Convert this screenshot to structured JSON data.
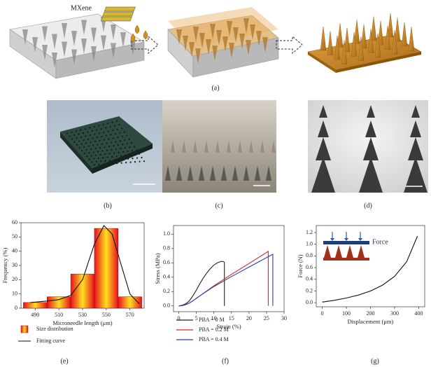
{
  "schematic": {
    "material_label": "MXene"
  },
  "panel_labels": [
    "(a)",
    "(b)",
    "(c)",
    "(d)",
    "(e)",
    "(f)",
    "(g)"
  ],
  "chart_data": [
    {
      "type": "bar",
      "x_label": "Microneedle length (μm)",
      "y_label": "Frequency (%)",
      "categories": [
        490,
        510,
        530,
        550,
        570
      ],
      "xlim": [
        478,
        582
      ],
      "ylim": [
        0,
        60
      ],
      "yticks": [
        0,
        10,
        20,
        30,
        40,
        50,
        60
      ],
      "series": [
        {
          "name": "Size distribution",
          "color": [
            "#e8101c",
            "#ffe020"
          ],
          "values": [
            4,
            8,
            24,
            56,
            8
          ]
        },
        {
          "name": "Fitting curve",
          "type": "line",
          "color": "#111111",
          "x": [
            486,
            500,
            510,
            520,
            530,
            540,
            548,
            555,
            562,
            570,
            578
          ],
          "values": [
            4,
            5,
            6,
            9,
            20,
            45,
            58,
            52,
            32,
            10,
            3
          ]
        }
      ]
    },
    {
      "type": "line",
      "x_label": "Strain (%)",
      "y_label": "Stress (MPa)",
      "xlim": [
        -1.5,
        30
      ],
      "xticks": [
        0,
        5,
        10,
        15,
        20,
        25,
        30
      ],
      "ylim": [
        -0.08,
        1.12
      ],
      "yticks": [
        {
          "value": 0,
          "label": "0.0"
        },
        0.2,
        0.4,
        0.6,
        0.8,
        {
          "value": 1,
          "label": "1.0"
        }
      ],
      "series": [
        {
          "name": "PBA = 0 M",
          "color": "#222222",
          "x": [
            0,
            1,
            2,
            3,
            4,
            5,
            6,
            7,
            8,
            9,
            10,
            11,
            12,
            12.6,
            13,
            13
          ],
          "values": [
            0,
            0.01,
            0.03,
            0.07,
            0.14,
            0.22,
            0.31,
            0.39,
            0.46,
            0.52,
            0.57,
            0.6,
            0.62,
            0.62,
            0.61,
            0
          ]
        },
        {
          "name": "PBA = 0.2 M",
          "color": "#e02020",
          "x": [
            0,
            1,
            2,
            3,
            4,
            6,
            10,
            15,
            20,
            25.5,
            25.5
          ],
          "values": [
            0,
            0.005,
            0.02,
            0.04,
            0.07,
            0.14,
            0.28,
            0.44,
            0.59,
            0.76,
            0
          ]
        },
        {
          "name": "PBA = 0.4 M",
          "color": "#2040b0",
          "x": [
            0,
            1,
            2,
            3,
            4,
            6,
            10,
            15,
            20,
            26.8,
            26.8
          ],
          "values": [
            0,
            0.005,
            0.02,
            0.04,
            0.07,
            0.14,
            0.27,
            0.41,
            0.54,
            0.72,
            0
          ]
        }
      ]
    },
    {
      "type": "line",
      "x_label": "Displacement (μm)",
      "y_label": "Force (N)",
      "inset_label": "Force",
      "xlim": [
        -25,
        425
      ],
      "xticks": [
        0,
        100,
        200,
        300,
        400
      ],
      "ylim": [
        -0.07,
        1.32
      ],
      "yticks": [
        {
          "value": 0,
          "label": "0.0"
        },
        0.2,
        0.4,
        0.6,
        0.8,
        {
          "value": 1,
          "label": "1.0"
        },
        1.2
      ],
      "series": [
        {
          "color": "#111111",
          "x": [
            0,
            50,
            100,
            150,
            200,
            250,
            300,
            350,
            395
          ],
          "values": [
            0.01,
            0.04,
            0.08,
            0.13,
            0.2,
            0.3,
            0.45,
            0.7,
            1.14
          ]
        }
      ]
    }
  ]
}
